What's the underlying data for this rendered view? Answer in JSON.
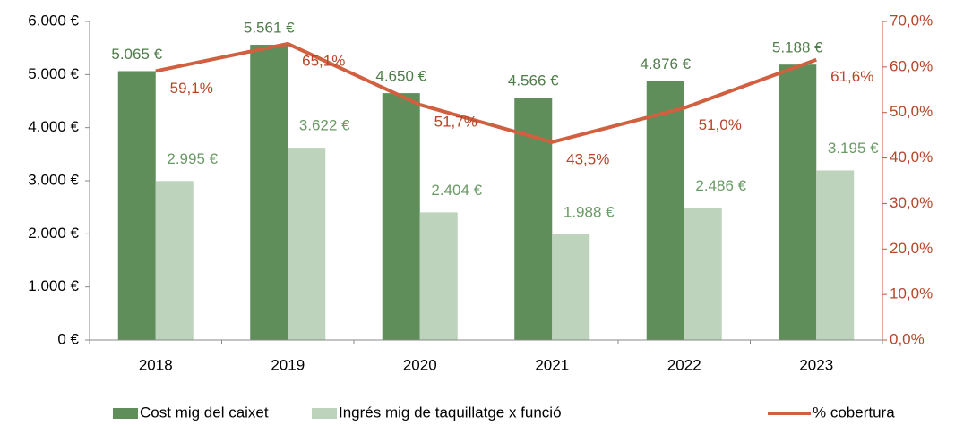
{
  "chart_data": {
    "type": "bar+line",
    "categories": [
      "2018",
      "2019",
      "2020",
      "2021",
      "2022",
      "2023"
    ],
    "series": [
      {
        "name": "Cost mig del caixet",
        "type": "bar",
        "color": "#5f8e5a",
        "label_color": "#4f7d4a",
        "values": [
          5065,
          5561,
          4650,
          4566,
          4876,
          5188
        ],
        "value_labels": [
          "5.065 €",
          "5.561 €",
          "4.650 €",
          "4.566 €",
          "4.876 €",
          "5.188 €"
        ]
      },
      {
        "name": "Ingrés mig de taquillatge x funció",
        "type": "bar",
        "color": "#bdd3bb",
        "label_color": "#6a9a65",
        "values": [
          2995,
          3622,
          2404,
          1988,
          2486,
          3195
        ],
        "value_labels": [
          "2.995 €",
          "3.622 €",
          "2.404 €",
          "1.988 €",
          "2.486 €",
          "3.195 €"
        ]
      },
      {
        "name": "% cobertura",
        "type": "line",
        "axis": "y2",
        "color": "#d0603f",
        "label_color": "#b5462a",
        "values": [
          59.1,
          65.1,
          51.7,
          43.5,
          51.0,
          61.6
        ],
        "value_labels": [
          "59,1%",
          "65,1%",
          "51,7%",
          "43,5%",
          "51,0%",
          "61,6%"
        ]
      }
    ],
    "ylim": [
      0,
      6000
    ],
    "yticks": [
      {
        "value": 0,
        "label": "0 €"
      },
      {
        "value": 1000,
        "label": "1.000 €"
      },
      {
        "value": 2000,
        "label": "2.000 €"
      },
      {
        "value": 3000,
        "label": "3.000 €"
      },
      {
        "value": 4000,
        "label": "4.000 €"
      },
      {
        "value": 5000,
        "label": "5.000 €"
      },
      {
        "value": 6000,
        "label": "6.000 €"
      }
    ],
    "y2lim": [
      0,
      70
    ],
    "y2ticks": [
      {
        "value": 0,
        "label": "0,0%"
      },
      {
        "value": 10,
        "label": "10,0%"
      },
      {
        "value": 20,
        "label": "20,0%"
      },
      {
        "value": 30,
        "label": "30,0%"
      },
      {
        "value": 40,
        "label": "40,0%"
      },
      {
        "value": 50,
        "label": "50,0%"
      },
      {
        "value": 60,
        "label": "60,0%"
      },
      {
        "value": 70,
        "label": "70,0%"
      }
    ],
    "legend": "bottom"
  }
}
